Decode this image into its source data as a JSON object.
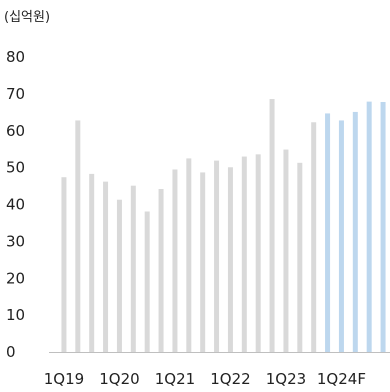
{
  "chart_data": {
    "type": "bar",
    "unit_label": "(십억원)",
    "ylim": [
      0,
      80
    ],
    "y_ticks": [
      "0",
      "10",
      "20",
      "30",
      "40",
      "50",
      "60",
      "70",
      "80"
    ],
    "x_tick_labels": [
      "1Q19",
      "1Q20",
      "1Q21",
      "1Q22",
      "1Q23",
      "1Q24F"
    ],
    "colors": {
      "actual": "#d9d9d9",
      "forecast": "#bdd7ee",
      "axis": "#bfbfbf"
    },
    "series": [
      {
        "values": [
          47.4,
          62.8,
          48.3,
          46.2,
          41.3,
          45.1,
          38.1,
          44.2,
          49.5,
          52.5,
          48.7,
          51.9,
          50.1,
          53.0,
          53.6,
          68.6,
          54.9,
          51.3,
          62.3,
          64.7,
          62.8,
          65.1,
          67.9,
          67.8
        ],
        "forecast_from_index": 19
      }
    ]
  }
}
